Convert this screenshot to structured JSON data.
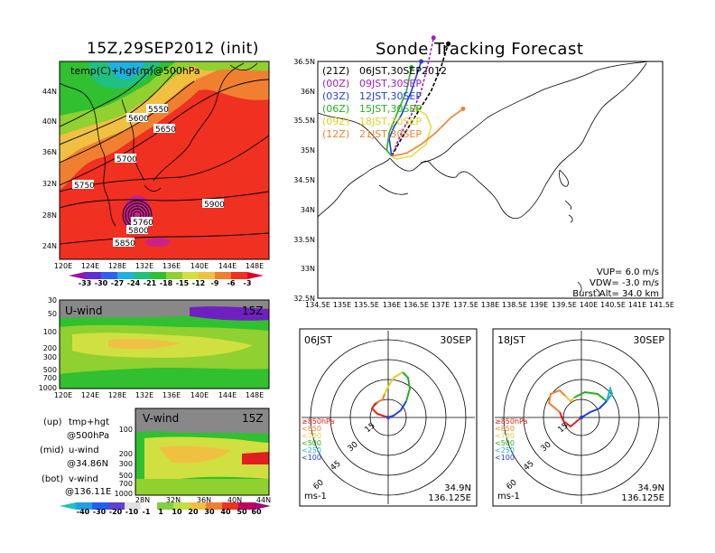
{
  "left": {
    "title": "15Z,29SEP2012 (init)",
    "map": {
      "label": "temp(C)+hgt(m)@500hPa",
      "lat_ticks": [
        "44N",
        "40N",
        "36N",
        "32N",
        "28N",
        "24N"
      ],
      "lon_ticks": [
        "120E",
        "124E",
        "128E",
        "132E",
        "136E",
        "140E",
        "144E",
        "148E"
      ],
      "contours": [
        "5550",
        "5600",
        "5650",
        "5700",
        "5750",
        "5800",
        "5850",
        "5900",
        "5760"
      ],
      "colorbar": [
        "-33",
        "-30",
        "-27",
        "-24",
        "-21",
        "-18",
        "-15",
        "-12",
        "-9",
        "-6",
        "-3"
      ],
      "colorbar_colors": [
        "#a010a0",
        "#6030d0",
        "#3060f0",
        "#20b0e0",
        "#20c080",
        "#30c030",
        "#90d030",
        "#d0e040",
        "#f0c040",
        "#f08030",
        "#f03020",
        "#e00020"
      ]
    },
    "uwind": {
      "label": "U-wind",
      "time": "15Z",
      "p_ticks": [
        "30",
        "50",
        "100",
        "200",
        "300",
        "500",
        "700",
        "1000"
      ],
      "lon_ticks": [
        "120E",
        "124E",
        "128E",
        "132E",
        "136E",
        "140E",
        "144E",
        "148E"
      ]
    },
    "vwind": {
      "label": "V-wind",
      "time": "15Z",
      "p_ticks": [
        "100",
        "200",
        "300",
        "500",
        "700",
        "1000"
      ],
      "lat_ticks": [
        "28N",
        "32N",
        "36N",
        "40N",
        "44N"
      ],
      "colorbar": [
        "-40",
        "-30",
        "-20",
        "-10",
        "-1",
        "1",
        "10",
        "20",
        "30",
        "40",
        "50",
        "60"
      ]
    },
    "legend": [
      {
        "k": "(up)",
        "v": "tmp+hgt"
      },
      {
        "k": "",
        "v": "@500hPa"
      },
      {
        "k": "(mid)",
        "v": "u-wind"
      },
      {
        "k": "",
        "v": "@34.86N"
      },
      {
        "k": "(bot)",
        "v": "v-wind"
      },
      {
        "k": "",
        "v": "@136.11E"
      }
    ]
  },
  "right": {
    "title": "Sonde Tracking Forecast",
    "lat_ticks": [
      "36.5N",
      "36N",
      "35.5N",
      "35N",
      "34.5N",
      "34N",
      "33.5N",
      "33N",
      "32.5N"
    ],
    "lon_ticks": [
      "134.5E",
      "135E",
      "135.5E",
      "136E",
      "136.5E",
      "137E",
      "137.5E",
      "138E",
      "138.5E",
      "139E",
      "139.5E",
      "140E",
      "140.5E",
      "141E",
      "141.5E"
    ],
    "legend": [
      {
        "code": "(21Z)",
        "time": "06JST,30SEP2012",
        "color": "#000000"
      },
      {
        "code": "(00Z)",
        "time": "09JST,30SEP",
        "color": "#a020c0"
      },
      {
        "code": "(03Z)",
        "time": "12JST,30SEP",
        "color": "#2040e0"
      },
      {
        "code": "(06Z)",
        "time": "15JST,30SEP",
        "color": "#20b020"
      },
      {
        "code": "(09Z)",
        "time": "18JST,30SEP",
        "color": "#e0e040"
      },
      {
        "code": "(12Z)",
        "time": "21JST,30SEP",
        "color": "#f08030"
      }
    ],
    "params": {
      "vup": "VUP=  6.0  m/s",
      "vdw": "VDW= -3.0  m/s",
      "burst": "Burst Alt= 34.0  km"
    }
  },
  "polar": [
    {
      "time": "06JST",
      "date": "30SEP",
      "lat": "34.9N",
      "lon": "136.125E",
      "unit": "ms-1",
      "rings": [
        "15",
        "30",
        "45",
        "60"
      ],
      "levels": [
        {
          "t": "≥850hPa",
          "c": "#e02020"
        },
        {
          "t": "<850",
          "c": "#f08030"
        },
        {
          "t": "<700",
          "c": "#e0d030"
        },
        {
          "t": "<500",
          "c": "#20b020"
        },
        {
          "t": "<250",
          "c": "#20b0d0"
        },
        {
          "t": "<100",
          "c": "#2040e0"
        }
      ]
    },
    {
      "time": "18JST",
      "date": "30SEP",
      "lat": "34.9N",
      "lon": "136.125E",
      "unit": "ms-1",
      "rings": [
        "15",
        "30",
        "45",
        "60"
      ],
      "levels": [
        {
          "t": "≥850hPa",
          "c": "#e02020"
        },
        {
          "t": "<850",
          "c": "#f08030"
        },
        {
          "t": "<700",
          "c": "#e0d030"
        },
        {
          "t": "<500",
          "c": "#20b020"
        },
        {
          "t": "<250",
          "c": "#20b0d0"
        },
        {
          "t": "<100",
          "c": "#2040e0"
        }
      ]
    }
  ],
  "chart_data": [
    {
      "type": "heatmap",
      "title": "15Z,29SEP2012 (init)",
      "label": "temp(C)+hgt(m)@500hPa",
      "xlim": [
        120,
        150
      ],
      "ylim": [
        22,
        47
      ],
      "colorbar": [
        -33,
        -30,
        -27,
        -24,
        -21,
        -18,
        -15,
        -12,
        -9,
        -6,
        -3
      ]
    },
    {
      "type": "heatmap",
      "label": "U-wind",
      "time": "15Z",
      "xlim": [
        120,
        150
      ]
    },
    {
      "type": "heatmap",
      "label": "V-wind",
      "time": "15Z",
      "xlim": [
        28,
        44
      ],
      "colorbar": [
        -40,
        -30,
        -20,
        -10,
        -1,
        1,
        10,
        20,
        30,
        40,
        50,
        60
      ]
    },
    {
      "type": "line",
      "title": "Sonde Tracking Forecast",
      "xlim": [
        134.5,
        141.5
      ],
      "ylim": [
        32.5,
        36.5
      ],
      "series": [
        {
          "name": "(21Z) 06JST,30SEP2012",
          "x": [
            136.0,
            136.2,
            136.5,
            136.8,
            137.0,
            137.15
          ],
          "y": [
            34.9,
            35.2,
            35.6,
            36.0,
            36.4,
            36.8
          ]
        },
        {
          "name": "(00Z) 09JST,30SEP",
          "x": [
            136.0,
            136.2,
            136.4,
            136.6,
            136.75,
            136.85
          ],
          "y": [
            34.9,
            35.3,
            35.6,
            36.0,
            36.5,
            36.9
          ]
        },
        {
          "name": "(03Z) 12JST,30SEP",
          "x": [
            136.0,
            135.95,
            136.05,
            136.2,
            136.4,
            136.6
          ],
          "y": [
            34.9,
            35.2,
            35.4,
            35.6,
            36.0,
            36.5
          ]
        },
        {
          "name": "(06Z) 15JST,30SEP",
          "x": [
            136.0,
            135.9,
            135.95,
            136.1,
            136.3,
            136.4
          ],
          "y": [
            34.9,
            35.0,
            35.3,
            35.6,
            36.0,
            36.4
          ]
        },
        {
          "name": "(09Z) 18JST,30SEP",
          "x": [
            136.0,
            136.1,
            136.4,
            136.7,
            136.8,
            136.7,
            136.5
          ],
          "y": [
            34.9,
            34.85,
            34.9,
            35.1,
            35.4,
            35.6,
            35.7
          ]
        },
        {
          "name": "(12Z) 21JST,30SEP",
          "x": [
            136.0,
            136.3,
            136.6,
            136.9,
            137.2,
            137.45
          ],
          "y": [
            34.9,
            34.95,
            35.1,
            35.3,
            35.55,
            35.7
          ]
        }
      ]
    }
  ]
}
